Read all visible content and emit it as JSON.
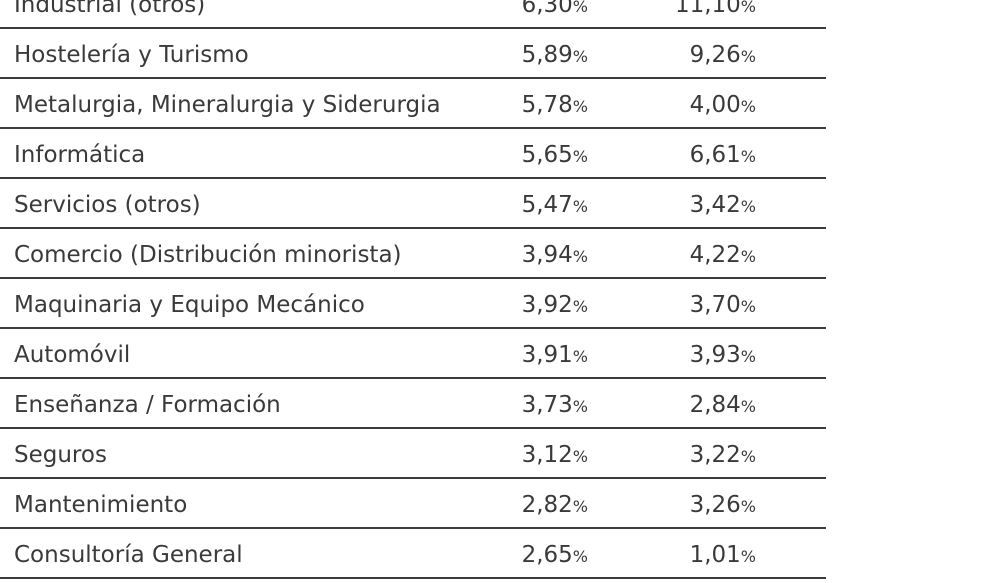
{
  "rows": [
    {
      "label": "Industrial (otros)",
      "v1": "6,30",
      "v2": "11,10",
      "u1": "%",
      "u2": "%"
    },
    {
      "label": "Hostelería y Turismo",
      "v1": "5,89",
      "v2": "9,26",
      "u1": "%",
      "u2": "%"
    },
    {
      "label": "Metalurgia, Mineralurgia y Siderurgia",
      "v1": "5,78",
      "v2": "4,00",
      "u1": "%",
      "u2": "%"
    },
    {
      "label": "Informática",
      "v1": "5,65",
      "v2": "6,61",
      "u1": "%",
      "u2": "%"
    },
    {
      "label": "Servicios (otros)",
      "v1": "5,47",
      "v2": "3,42",
      "u1": "%",
      "u2": "%"
    },
    {
      "label": "Comercio (Distribución minorista)",
      "v1": "3,94",
      "v2": "4,22",
      "u1": "%",
      "u2": "%"
    },
    {
      "label": "Maquinaria y Equipo Mecánico",
      "v1": "3,92",
      "v2": "3,70",
      "u1": "%",
      "u2": "%"
    },
    {
      "label": "Automóvil",
      "v1": "3,91",
      "v2": "3,93",
      "u1": "%",
      "u2": "%"
    },
    {
      "label": "Enseñanza / Formación",
      "v1": "3,73",
      "v2": "2,84",
      "u1": "%",
      "u2": "%"
    },
    {
      "label": "Seguros",
      "v1": "3,12",
      "v2": "3,22",
      "u1": "%",
      "u2": "%"
    },
    {
      "label": "Mantenimiento",
      "v1": "2,82",
      "v2": "3,26",
      "u1": "%",
      "u2": "%"
    },
    {
      "label": "Consultoría General",
      "v1": "2,65",
      "v2": "1,01",
      "u1": "%",
      "u2": "%"
    }
  ]
}
